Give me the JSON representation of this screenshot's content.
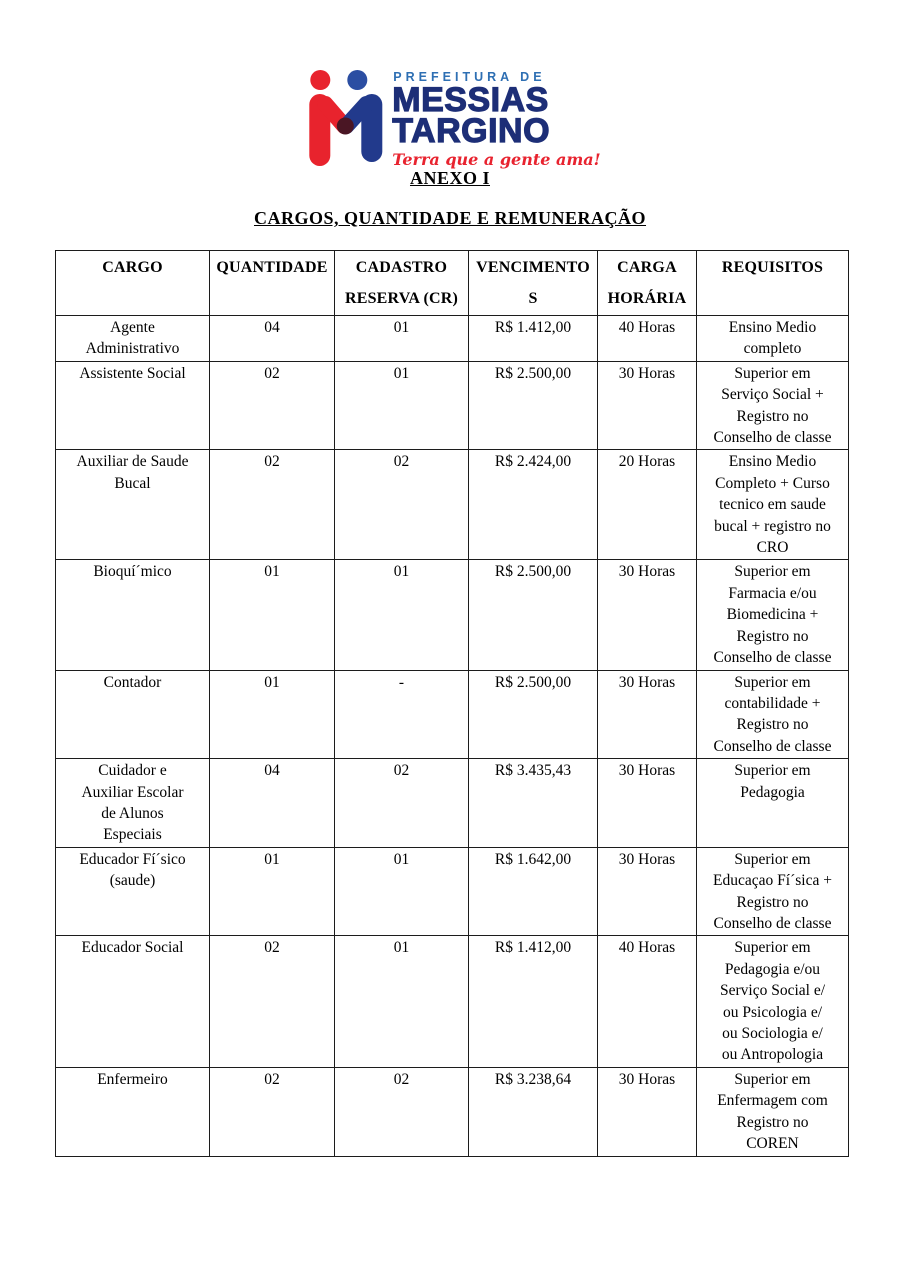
{
  "logo": {
    "top_line": "PREFEITURA DE",
    "name_line1": "MESSIAS",
    "name_line2": "TARGINO",
    "slogan": "Terra que a gente ama!",
    "colors": {
      "red": "#e8232d",
      "navy": "#1d2e77",
      "head_blue": "#2b4ea2",
      "text_blue": "#2e6fb3",
      "hand_dark": "#4a1624"
    }
  },
  "headings": {
    "annex": "ANEXO I",
    "table_title": "CARGOS, QUANTIDADE E REMUNERAÇÃO"
  },
  "table": {
    "headers": [
      "CARGO",
      "QUANTIDADE",
      "CADASTRO\nRESERVA (CR)",
      "VENCIMENTO\nS",
      "CARGA\nHORÁRIA",
      "REQUISITOS"
    ],
    "rows": [
      [
        "Agente\nAdministrativo",
        "04",
        "01",
        "R$ 1.412,00",
        "40 Horas",
        "Ensino Medio\ncompleto"
      ],
      [
        "Assistente Social",
        "02",
        "01",
        "R$ 2.500,00",
        "30 Horas",
        "Superior em\nServiço Social +\nRegistro no\nConselho de classe"
      ],
      [
        "Auxiliar de Saude\nBucal",
        "02",
        "02",
        "R$ 2.424,00",
        "20 Horas",
        "Ensino Medio\nCompleto + Curso\ntecnico em saude\nbucal + registro no\nCRO"
      ],
      [
        "Bioquí´mico",
        "01",
        "01",
        "R$ 2.500,00",
        "30 Horas",
        "Superior em\nFarmacia e/ou\nBiomedicina +\nRegistro no\nConselho de classe"
      ],
      [
        "Contador",
        "01",
        "-",
        "R$ 2.500,00",
        "30 Horas",
        "Superior em\ncontabilidade +\nRegistro no\nConselho de classe"
      ],
      [
        "Cuidador e\nAuxiliar Escolar\nde Alunos\nEspeciais",
        "04",
        "02",
        "R$ 3.435,43",
        "30 Horas",
        "Superior em\nPedagogia"
      ],
      [
        "Educador Fí´sico\n(saude)",
        "01",
        "01",
        "R$ 1.642,00",
        "30 Horas",
        "Superior em\nEducaçao Fí´sica +\nRegistro no\nConselho de classe"
      ],
      [
        "Educador Social",
        "02",
        "01",
        "R$ 1.412,00",
        "40 Horas",
        "Superior em\nPedagogia e/ou\nServiço Social e/\nou Psicologia e/\nou Sociologia e/\nou Antropologia"
      ],
      [
        "Enfermeiro",
        "02",
        "02",
        "R$ 3.238,64",
        "30 Horas",
        "Superior em\nEnfermagem com\nRegistro no\nCOREN"
      ]
    ]
  }
}
